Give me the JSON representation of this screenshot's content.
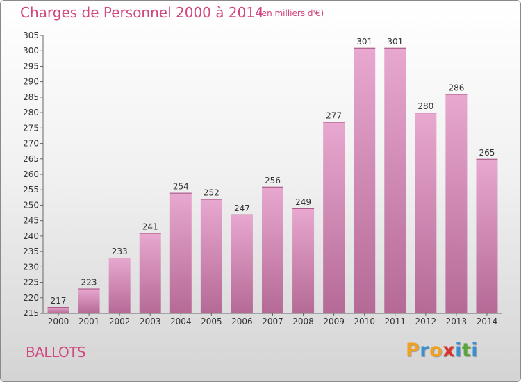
{
  "header": {
    "title": "Charges de Personnel 2000 à 2014",
    "subtitle": "(en milliers d'€)"
  },
  "commune": "BALLOTS",
  "logo": {
    "letters": [
      "P",
      "r",
      "o",
      "x",
      "i",
      "t",
      "i"
    ],
    "colors": [
      "#f0a023",
      "#3a8fd0",
      "#f0a023",
      "#d9342b",
      "#3a8fd0",
      "#5aa63c",
      "#3a8fd0"
    ]
  },
  "colors": {
    "bar_light": "#e8a8d0",
    "bar_dark": "#b56a96",
    "title": "#d0467f"
  },
  "chart_data": {
    "type": "bar",
    "categories": [
      "2000",
      "2001",
      "2002",
      "2003",
      "2004",
      "2005",
      "2006",
      "2007",
      "2008",
      "2009",
      "2010",
      "2011",
      "2012",
      "2013",
      "2014"
    ],
    "values": [
      217,
      223,
      233,
      241,
      254,
      252,
      247,
      256,
      249,
      277,
      301,
      301,
      280,
      286,
      265
    ],
    "title": "Charges de Personnel 2000 à 2014",
    "xlabel": "",
    "ylabel": "",
    "ylim": [
      215,
      305
    ],
    "yticks": [
      215,
      220,
      225,
      230,
      235,
      240,
      245,
      250,
      255,
      260,
      265,
      270,
      275,
      280,
      285,
      290,
      295,
      300,
      305
    ],
    "grid": false,
    "data_labels": true
  }
}
